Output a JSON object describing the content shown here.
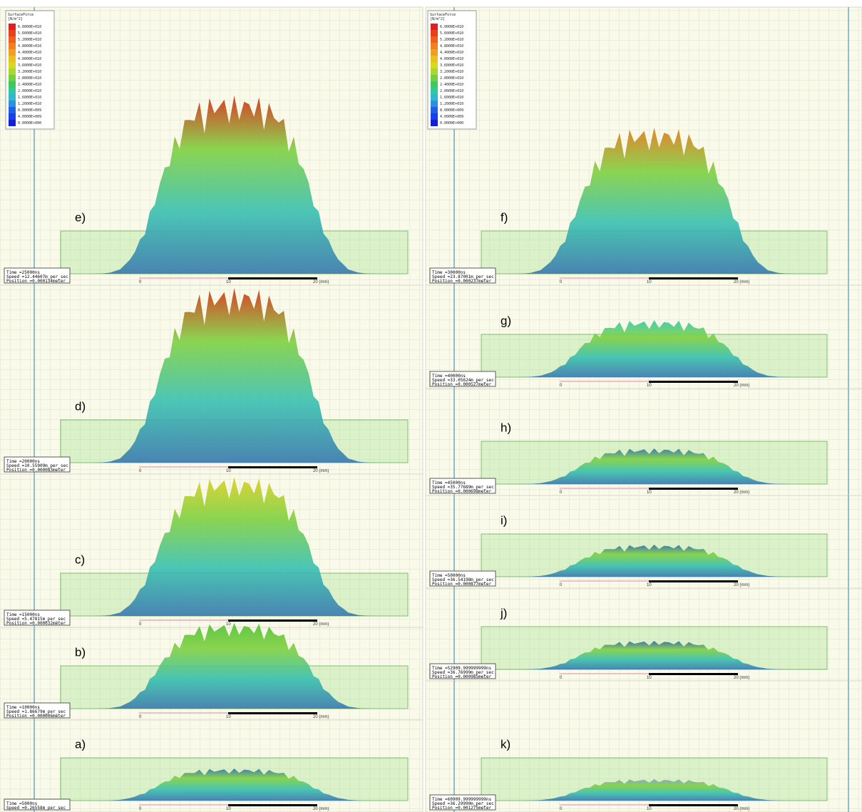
{
  "legends": [
    {
      "title": "SurfaceForce",
      "unit": "[N/m^2]",
      "values": [
        "6.0000E+010",
        "5.6000E+010",
        "5.2000E+010",
        "4.8000E+010",
        "4.4000E+010",
        "4.0000E+010",
        "3.6000E+010",
        "3.2000E+010",
        "2.8000E+010",
        "2.4000E+010",
        "2.0000E+010",
        "1.6000E+010",
        "1.2000E+010",
        "8.0000E+009",
        "4.0000E+009",
        "0.0000E+000"
      ]
    },
    {
      "title": "SurfaceForce",
      "unit": "[N/m^2]",
      "values": [
        "6.0000E+010",
        "5.6000E+010",
        "5.2000E+010",
        "4.8000E+010",
        "4.4000E+010",
        "4.0000E+010",
        "3.6000E+010",
        "3.2000E+010",
        "2.8000E+010",
        "2.4000E+010",
        "2.0000E+010",
        "1.6000E+010",
        "1.2000E+010",
        "8.0000E+009",
        "4.0000E+009",
        "0.0000E+000"
      ]
    }
  ],
  "panels": [
    {
      "label": "e)",
      "info": [
        "Time =25000ns",
        "Speed =12.44607m_per_sec",
        "Position =0.000134meter"
      ],
      "scale": [
        "0",
        "10",
        "20 (mm)"
      ]
    },
    {
      "label": "d)",
      "info": [
        "Time =20000ns",
        "Speed =10.55909m_per_sec",
        "Position =0.000083meter"
      ],
      "scale": [
        "0",
        "10",
        "20 (mm)"
      ]
    },
    {
      "label": "c)",
      "info": [
        "Time =15000ns",
        "Speed =5.47815m_per_sec",
        "Position =0.000032meter"
      ],
      "scale": [
        "0",
        "10",
        "20 (mm)"
      ]
    },
    {
      "label": "b)",
      "info": [
        "Time =10000ns",
        "Speed =1.86679m_per_sec",
        "Position =0.000006meter"
      ],
      "scale": [
        "0",
        "10",
        "20 (mm)"
      ]
    },
    {
      "label": "a)",
      "info": [
        "Time =5000ns",
        "Speed =0.26558m_per_sec"
      ],
      "scale": [
        "0",
        "10",
        "20 (mm)"
      ]
    },
    {
      "label": "f)",
      "info": [
        "Time =30000ns",
        "Speed =23.87001m_per_sec",
        "Position =0.000237meter"
      ],
      "scale": [
        "0",
        "10",
        "20 (mm)"
      ]
    },
    {
      "label": "g)",
      "info": [
        "Time =40000ns",
        "Speed =33.05624m_per_sec",
        "Position =0.000527meter"
      ],
      "scale": [
        "0",
        "10",
        "20 (mm)"
      ]
    },
    {
      "label": "h)",
      "info": [
        "Time =45000ns",
        "Speed =35.77689m_per_sec",
        "Position =0.000698meter"
      ],
      "scale": [
        "0",
        "10",
        "20 (mm)"
      ]
    },
    {
      "label": "i)",
      "info": [
        "Time =50000ns",
        "Speed =36.54198m_per_sec",
        "Position =0.000877meter"
      ],
      "scale": [
        "0",
        "10",
        "20 (mm)"
      ]
    },
    {
      "label": "j)",
      "info": [
        "Time =52909.999999999ns",
        "Speed =36.76999m_per_sec",
        "Position =0.000985meter"
      ],
      "scale": [
        "0",
        "10",
        "20 (mm)"
      ]
    },
    {
      "label": "k)",
      "info": [
        "Time =60909.999999999ns",
        "Speed =36.29990m_per_sec",
        "Position =0.001275meter"
      ],
      "scale": [
        "0",
        "10",
        "20 (mm)"
      ]
    }
  ]
}
